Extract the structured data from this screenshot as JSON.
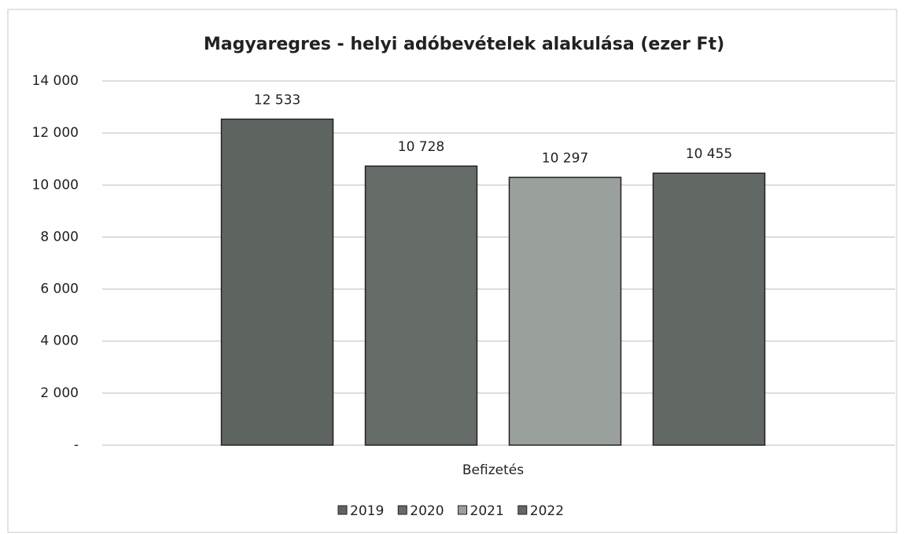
{
  "chart_data": {
    "type": "bar",
    "title": "Magyaregres - helyi adóbevételek alakulása (ezer Ft)",
    "xlabel": "Befizetés",
    "categories": [
      null
    ],
    "series": [
      {
        "name": "2019",
        "color": "#5e6560",
        "values": [
          12533
        ],
        "value_labels": [
          "12 533"
        ]
      },
      {
        "name": "2020",
        "color": "#656b66",
        "values": [
          10728
        ],
        "value_labels": [
          "10 728"
        ]
      },
      {
        "name": "2021",
        "color": "#9aa09c",
        "values": [
          10297
        ],
        "value_labels": [
          "10 297"
        ]
      },
      {
        "name": "2022",
        "color": "#626864",
        "values": [
          10455
        ],
        "value_labels": [
          "10 455"
        ]
      }
    ],
    "ylim": [
      0,
      14000
    ],
    "yticks": [
      {
        "value": 0,
        "label": "-"
      },
      {
        "value": 2000,
        "label": "2 000"
      },
      {
        "value": 4000,
        "label": "4 000"
      },
      {
        "value": 6000,
        "label": "6 000"
      },
      {
        "value": 8000,
        "label": "8 000"
      },
      {
        "value": 10000,
        "label": "10 000"
      },
      {
        "value": 12000,
        "label": "12 000"
      },
      {
        "value": 14000,
        "label": "14 000"
      }
    ],
    "grid": true,
    "legend": "bottom"
  }
}
